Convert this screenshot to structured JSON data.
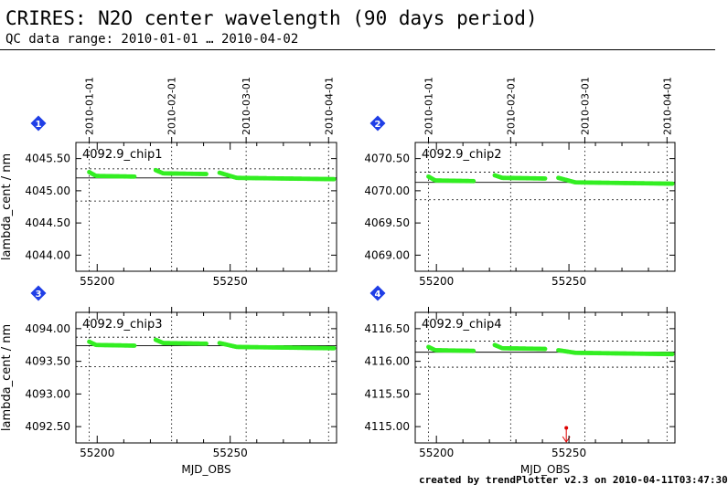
{
  "header": {
    "title": "CRIRES: N2O center wavelength (90 days period)",
    "subtitle": "QC data range: 2010-01-01 … 2010-04-02"
  },
  "footer": {
    "credit": "created by trendPlotter v2.3 on 2010-04-11T03:47:30"
  },
  "colors": {
    "points": "#33ee22",
    "outlier": "#dd0000",
    "badge": "#1f3ee6",
    "grid": "#000000"
  },
  "chart_data": [
    {
      "type": "scatter",
      "badge": "1",
      "panel_label": "4092.9_chip1",
      "ylabel": "lambda_cent / nm",
      "xlabel": "",
      "xlim": [
        55192,
        55290
      ],
      "ylim": [
        4043.75,
        4045.75
      ],
      "x_ticks": [
        55200,
        55250
      ],
      "y_ticks": [
        4044.0,
        4044.5,
        4045.0,
        4045.5
      ],
      "y_tick_labels": [
        "4044.00",
        "4044.50",
        "4045.00",
        "4045.50"
      ],
      "date_ticks": [
        "2010-01-01",
        "2010-02-01",
        "2010-03-01",
        "2010-04-01"
      ],
      "date_ticks_mjd": [
        55197,
        55228,
        55256,
        55287
      ],
      "reference_line": 4045.2,
      "dotted_lines": [
        4045.34,
        4044.84
      ],
      "segments": [
        {
          "x_start": 55197,
          "x_end": 55214,
          "y_start": 4045.29,
          "y_mid": 4045.23,
          "y_end": 4045.22
        },
        {
          "x_start": 55222,
          "x_end": 55241,
          "y_start": 4045.32,
          "y_mid": 4045.27,
          "y_end": 4045.26
        },
        {
          "x_start": 55246,
          "x_end": 55289,
          "y_start": 4045.28,
          "y_mid": 4045.2,
          "y_end": 4045.18
        }
      ],
      "outliers": []
    },
    {
      "type": "scatter",
      "badge": "2",
      "panel_label": "4092.9_chip2",
      "ylabel": "",
      "xlabel": "",
      "xlim": [
        55192,
        55290
      ],
      "ylim": [
        4068.75,
        4070.75
      ],
      "x_ticks": [
        55200,
        55250
      ],
      "y_ticks": [
        4069.0,
        4069.5,
        4070.0,
        4070.5
      ],
      "y_tick_labels": [
        "4069.00",
        "4069.50",
        "4070.00",
        "4070.50"
      ],
      "date_ticks": [
        "2010-01-01",
        "2010-02-01",
        "2010-03-01",
        "2010-04-01"
      ],
      "date_ticks_mjd": [
        55197,
        55228,
        55256,
        55287
      ],
      "reference_line": 4070.13,
      "dotted_lines": [
        4070.29,
        4069.86
      ],
      "segments": [
        {
          "x_start": 55197,
          "x_end": 55214,
          "y_start": 4070.22,
          "y_mid": 4070.16,
          "y_end": 4070.15
        },
        {
          "x_start": 55222,
          "x_end": 55241,
          "y_start": 4070.24,
          "y_mid": 4070.2,
          "y_end": 4070.19
        },
        {
          "x_start": 55246,
          "x_end": 55289,
          "y_start": 4070.2,
          "y_mid": 4070.13,
          "y_end": 4070.11
        }
      ],
      "outliers": []
    },
    {
      "type": "scatter",
      "badge": "3",
      "panel_label": "4092.9_chip3",
      "ylabel": "lambda_cent / nm",
      "xlabel": "MJD_OBS",
      "xlim": [
        55192,
        55290
      ],
      "ylim": [
        4092.25,
        4094.25
      ],
      "x_ticks": [
        55200,
        55250
      ],
      "y_ticks": [
        4092.5,
        4093.0,
        4093.5,
        4094.0
      ],
      "y_tick_labels": [
        "4092.50",
        "4093.00",
        "4093.50",
        "4094.00"
      ],
      "date_ticks": [],
      "date_ticks_mjd": [
        55197,
        55228,
        55256,
        55287
      ],
      "reference_line": 4093.74,
      "dotted_lines": [
        4093.87,
        4093.42
      ],
      "segments": [
        {
          "x_start": 55197,
          "x_end": 55214,
          "y_start": 4093.8,
          "y_mid": 4093.75,
          "y_end": 4093.74
        },
        {
          "x_start": 55222,
          "x_end": 55241,
          "y_start": 4093.83,
          "y_mid": 4093.78,
          "y_end": 4093.77
        },
        {
          "x_start": 55246,
          "x_end": 55289,
          "y_start": 4093.78,
          "y_mid": 4093.72,
          "y_end": 4093.7
        }
      ],
      "outliers": []
    },
    {
      "type": "scatter",
      "badge": "4",
      "panel_label": "4092.9_chip4",
      "ylabel": "",
      "xlabel": "MJD_OBS",
      "xlim": [
        55192,
        55290
      ],
      "ylim": [
        4114.75,
        4116.75
      ],
      "x_ticks": [
        55200,
        55250
      ],
      "y_ticks": [
        4115.0,
        4115.5,
        4116.0,
        4116.5
      ],
      "y_tick_labels": [
        "4115.00",
        "4115.50",
        "4116.00",
        "4116.50"
      ],
      "date_ticks": [],
      "date_ticks_mjd": [
        55197,
        55228,
        55256,
        55287
      ],
      "reference_line": 4116.14,
      "dotted_lines": [
        4116.31,
        4115.91
      ],
      "segments": [
        {
          "x_start": 55197,
          "x_end": 55214,
          "y_start": 4116.22,
          "y_mid": 4116.17,
          "y_end": 4116.16
        },
        {
          "x_start": 55222,
          "x_end": 55241,
          "y_start": 4116.25,
          "y_mid": 4116.2,
          "y_end": 4116.19
        },
        {
          "x_start": 55246,
          "x_end": 55289,
          "y_start": 4116.17,
          "y_mid": 4116.13,
          "y_end": 4116.11
        }
      ],
      "outliers": [
        {
          "x": 55249,
          "y": 4114.98
        }
      ]
    }
  ]
}
